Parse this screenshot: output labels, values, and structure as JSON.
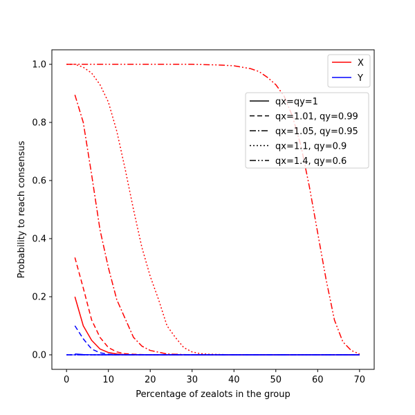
{
  "chart_data": {
    "type": "line",
    "xlabel": "Percentage of zealots in the group",
    "ylabel": "Probability to reach consensus",
    "xlim": [
      -3.5,
      73.5
    ],
    "ylim": [
      -0.05,
      1.05
    ],
    "x_ticks": [
      0,
      10,
      20,
      30,
      40,
      50,
      60,
      70
    ],
    "y_ticks": [
      0.0,
      0.2,
      0.4,
      0.6,
      0.8,
      1.0
    ],
    "grid": false,
    "colors": {
      "X": "#ff0000",
      "Y": "#0000ff"
    },
    "legend_color": {
      "placement": "top-right",
      "entries": [
        {
          "label": "X",
          "color": "#ff0000"
        },
        {
          "label": "Y",
          "color": "#0000ff"
        }
      ]
    },
    "legend_style": {
      "placement": "upper-right-inside",
      "entries": [
        {
          "label": "qx=qy=1",
          "dash": "solid"
        },
        {
          "label": "qx=1.01, qy=0.99",
          "dash": "dashed"
        },
        {
          "label": "qx=1.05, qy=0.95",
          "dash": "dashdot"
        },
        {
          "label": "qx=1.1, qy=0.9",
          "dash": "dotted"
        },
        {
          "label": "qx=1.4, qy=0.6",
          "dash": "dashdotdot"
        }
      ]
    },
    "series": [
      {
        "group": "X",
        "style": "solid",
        "color": "#ff0000",
        "x": [
          2,
          4,
          6,
          8,
          10,
          12,
          14,
          20,
          30,
          40,
          50,
          60,
          70
        ],
        "y": [
          0.2,
          0.1,
          0.05,
          0.02,
          0.008,
          0.003,
          0.001,
          0,
          0,
          0,
          0,
          0,
          0
        ]
      },
      {
        "group": "X",
        "style": "dashed",
        "color": "#ff0000",
        "x": [
          2,
          4,
          6,
          8,
          10,
          12,
          14,
          16,
          20,
          30,
          40,
          50,
          60,
          70
        ],
        "y": [
          0.335,
          0.23,
          0.12,
          0.06,
          0.025,
          0.01,
          0.004,
          0.002,
          0,
          0,
          0,
          0,
          0,
          0
        ]
      },
      {
        "group": "X",
        "style": "dashdot",
        "color": "#ff0000",
        "x": [
          2,
          4,
          6,
          8,
          10,
          12,
          14,
          16,
          18,
          20,
          24,
          30,
          40,
          50,
          60,
          70
        ],
        "y": [
          0.895,
          0.8,
          0.62,
          0.43,
          0.3,
          0.19,
          0.125,
          0.06,
          0.03,
          0.015,
          0.003,
          0,
          0,
          0,
          0,
          0
        ]
      },
      {
        "group": "X",
        "style": "dotted",
        "color": "#ff0000",
        "x": [
          0,
          2,
          4,
          6,
          8,
          10,
          12,
          14,
          16,
          18,
          20,
          22,
          24,
          26,
          28,
          30,
          32,
          34,
          40,
          50,
          60,
          70
        ],
        "y": [
          1.0,
          1.0,
          0.99,
          0.97,
          0.93,
          0.87,
          0.77,
          0.64,
          0.5,
          0.37,
          0.27,
          0.19,
          0.1,
          0.06,
          0.025,
          0.01,
          0.004,
          0.002,
          0,
          0,
          0,
          0
        ]
      },
      {
        "group": "X",
        "style": "dashdotdot",
        "color": "#ff0000",
        "x": [
          0,
          10,
          20,
          30,
          36,
          40,
          44,
          46,
          48,
          50,
          52,
          54,
          56,
          58,
          60,
          62,
          64,
          66,
          68,
          70
        ],
        "y": [
          1.0,
          1.0,
          1.0,
          1.0,
          0.998,
          0.995,
          0.985,
          0.975,
          0.955,
          0.93,
          0.89,
          0.82,
          0.72,
          0.58,
          0.42,
          0.26,
          0.12,
          0.045,
          0.015,
          0.003
        ]
      },
      {
        "group": "Y",
        "style": "solid",
        "color": "#0000ff",
        "x": [
          2,
          4,
          6,
          8,
          10,
          20,
          30,
          40,
          50,
          60,
          70
        ],
        "y": [
          0.003,
          0.001,
          0,
          0,
          0,
          0,
          0,
          0,
          0,
          0,
          0
        ]
      },
      {
        "group": "Y",
        "style": "dashed",
        "color": "#0000ff",
        "x": [
          2,
          4,
          6,
          8,
          10,
          12,
          14,
          20,
          30,
          40,
          50,
          60,
          70
        ],
        "y": [
          0.1,
          0.055,
          0.02,
          0.007,
          0.002,
          0.0005,
          0,
          0,
          0,
          0,
          0,
          0,
          0
        ]
      },
      {
        "group": "Y",
        "style": "dashdot",
        "color": "#0000ff",
        "x": [
          0,
          70
        ],
        "y": [
          0,
          0
        ]
      },
      {
        "group": "Y",
        "style": "dotted",
        "color": "#0000ff",
        "x": [
          0,
          70
        ],
        "y": [
          0,
          0
        ]
      },
      {
        "group": "Y",
        "style": "dashdotdot",
        "color": "#0000ff",
        "x": [
          0,
          70
        ],
        "y": [
          0,
          0
        ]
      }
    ]
  }
}
